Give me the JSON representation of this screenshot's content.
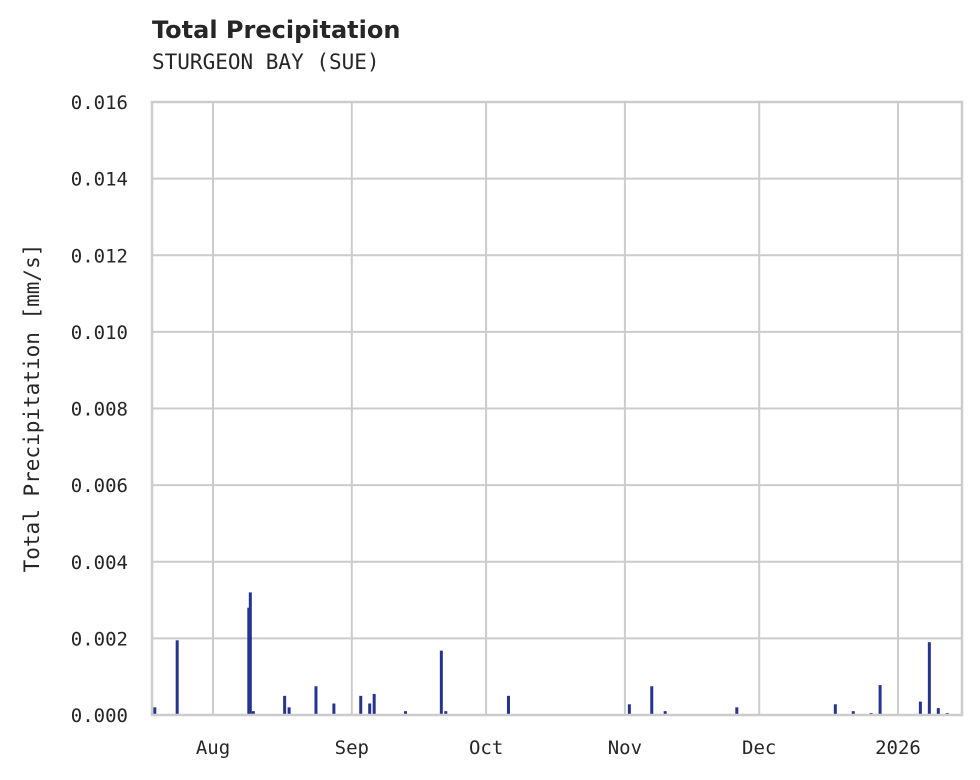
{
  "header": {
    "title": "Total Precipitation",
    "subtitle": "STURGEON BAY (SUE)"
  },
  "colors": {
    "bar": "#26338f",
    "grid": "#cccccc",
    "text": "#262626"
  },
  "chart_data": {
    "type": "bar",
    "title": "Total Precipitation",
    "subtitle": "STURGEON BAY (SUE)",
    "xlabel": "",
    "ylabel": "Total Precipitation [mm/s]",
    "ylim": [
      0,
      0.016
    ],
    "yticks": [
      "0.000",
      "0.002",
      "0.004",
      "0.006",
      "0.008",
      "0.010",
      "0.012",
      "0.014",
      "0.016"
    ],
    "xticks": [
      "Aug",
      "Sep",
      "Oct",
      "Nov",
      "Dec",
      "2026"
    ],
    "grid": true,
    "legend": null,
    "series": [
      {
        "name": "Total Precipitation",
        "points": [
          {
            "date": "2025-07-19",
            "value": 0.0002
          },
          {
            "date": "2025-07-24",
            "value": 0.00195
          },
          {
            "date": "2025-08-09",
            "value": 0.0028
          },
          {
            "date": "2025-08-09",
            "value": 0.0032
          },
          {
            "date": "2025-08-10",
            "value": 0.0001
          },
          {
            "date": "2025-08-17",
            "value": 0.0005
          },
          {
            "date": "2025-08-18",
            "value": 0.0002
          },
          {
            "date": "2025-08-24",
            "value": 0.00075
          },
          {
            "date": "2025-08-28",
            "value": 0.0003
          },
          {
            "date": "2025-09-03",
            "value": 0.0005
          },
          {
            "date": "2025-09-05",
            "value": 0.0003
          },
          {
            "date": "2025-09-06",
            "value": 0.00055
          },
          {
            "date": "2025-09-13",
            "value": 0.0001
          },
          {
            "date": "2025-09-21",
            "value": 0.00168
          },
          {
            "date": "2025-09-22",
            "value": 0.0001
          },
          {
            "date": "2025-10-06",
            "value": 0.0005
          },
          {
            "date": "2025-11-02",
            "value": 0.00028
          },
          {
            "date": "2025-11-07",
            "value": 0.00075
          },
          {
            "date": "2025-11-10",
            "value": 0.0001
          },
          {
            "date": "2025-11-26",
            "value": 0.0002
          },
          {
            "date": "2025-12-18",
            "value": 0.00028
          },
          {
            "date": "2025-12-22",
            "value": 0.0001
          },
          {
            "date": "2025-12-26",
            "value": 5e-05
          },
          {
            "date": "2025-12-28",
            "value": 0.00078
          },
          {
            "date": "2026-01-06",
            "value": 0.00035
          },
          {
            "date": "2026-01-08",
            "value": 0.0019
          },
          {
            "date": "2026-01-10",
            "value": 0.00018
          },
          {
            "date": "2026-01-12",
            "value": 5e-05
          }
        ]
      }
    ]
  }
}
